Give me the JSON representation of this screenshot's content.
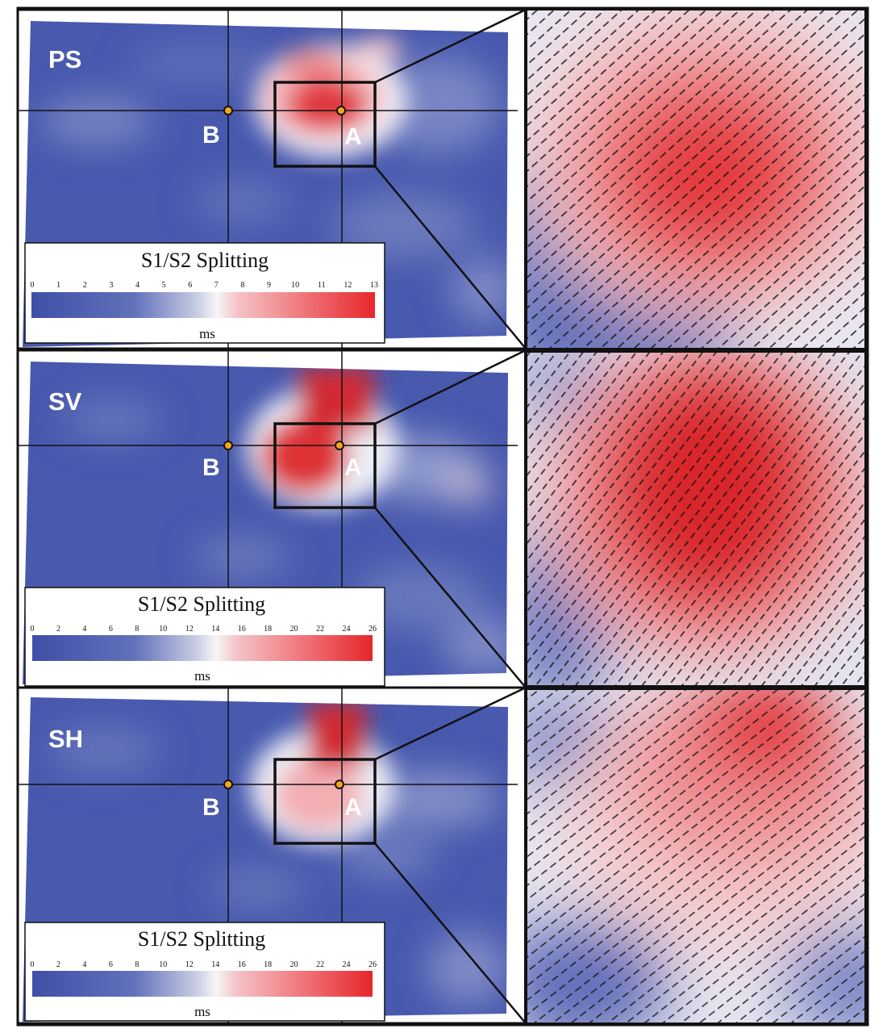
{
  "figure": {
    "colors": {
      "low": "#4557ad",
      "mid": "#f2f1f6",
      "high": "#e72b2b",
      "frame": "#111111",
      "marker": "#f5a51c"
    },
    "panels": [
      {
        "label": "PS",
        "legend": {
          "title": "S1/S2 Splitting",
          "ticks": [
            "0",
            "1",
            "2",
            "3",
            "4",
            "5",
            "6",
            "7",
            "8",
            "9",
            "10",
            "11",
            "12",
            "13"
          ],
          "unit": "ms"
        },
        "points": [
          {
            "label": "B"
          },
          {
            "label": "A"
          }
        ]
      },
      {
        "label": "SV",
        "legend": {
          "title": "S1/S2 Splitting",
          "ticks": [
            "0",
            "2",
            "4",
            "6",
            "8",
            "10",
            "12",
            "14",
            "16",
            "18",
            "20",
            "22",
            "24",
            "26"
          ],
          "unit": "ms"
        },
        "points": [
          {
            "label": "B"
          },
          {
            "label": "A"
          }
        ]
      },
      {
        "label": "SH",
        "legend": {
          "title": "S1/S2 Splitting",
          "ticks": [
            "0",
            "2",
            "4",
            "6",
            "8",
            "10",
            "12",
            "14",
            "16",
            "18",
            "20",
            "22",
            "24",
            "26"
          ],
          "unit": "ms"
        },
        "points": [
          {
            "label": "B"
          },
          {
            "label": "A"
          }
        ]
      }
    ]
  }
}
